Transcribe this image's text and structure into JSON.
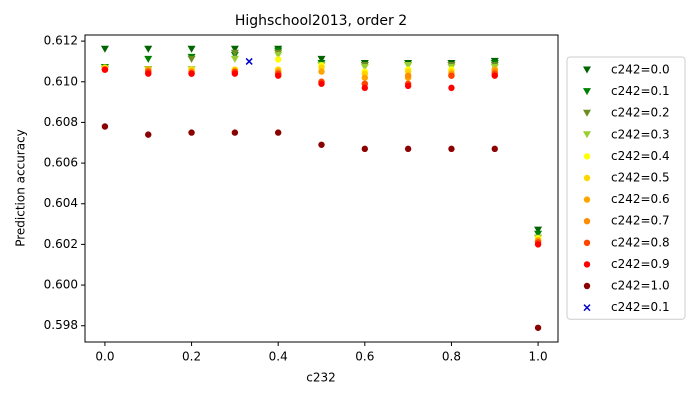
{
  "chart_data": {
    "type": "scatter",
    "title": "Highschool2013, order 2",
    "x_label": "c232",
    "y_label": "Prediction accuracy",
    "x": [
      0.0,
      0.1,
      0.2,
      0.3,
      0.4,
      0.5,
      0.6,
      0.7,
      0.8,
      0.9,
      1.0
    ],
    "xlim": [
      -0.046,
      1.046
    ],
    "ylim": [
      0.5972,
      0.6123
    ],
    "xticks": [
      {
        "value": 0,
        "label": "0.0"
      },
      0.2,
      0.4,
      0.6,
      0.8,
      {
        "value": 1,
        "label": "1.0"
      }
    ],
    "yticks": [
      0.598,
      {
        "value": 0.6,
        "label": "0.600"
      },
      0.602,
      0.604,
      0.606,
      0.608,
      {
        "value": 0.61,
        "label": "0.610"
      },
      0.612
    ],
    "grid": false,
    "legend": "outside-right",
    "series": [
      {
        "name": "c242=0.0",
        "color": "#006400",
        "marker": "v",
        "values": [
          0.6116,
          0.6116,
          0.6116,
          0.6116,
          0.6116,
          0.6111,
          0.6109,
          0.6109,
          0.6109,
          0.611,
          0.6027
        ]
      },
      {
        "name": "c242=0.1",
        "color": "#008000",
        "marker": "v",
        "values": [
          0.6107,
          0.6111,
          0.6112,
          0.6113,
          0.6115,
          0.6109,
          0.6108,
          0.6108,
          0.6108,
          0.6109,
          0.6025
        ]
      },
      {
        "name": "c242=0.2",
        "color": "#6b8e23",
        "marker": "v",
        "values": [
          0.6106,
          0.6106,
          0.6111,
          0.6114,
          0.6114,
          0.6108,
          0.6108,
          0.6108,
          0.6108,
          0.6108,
          0.6023
        ]
      },
      {
        "name": "c242=0.3",
        "color": "#9acd32",
        "marker": "v",
        "values": [
          0.6106,
          0.6106,
          0.6106,
          0.6111,
          0.6113,
          0.6108,
          0.6107,
          0.6108,
          0.6107,
          0.6107,
          0.6023
        ]
      },
      {
        "name": "c242=0.4",
        "color": "#ffff00",
        "marker": "o",
        "values": [
          0.6107,
          0.6106,
          0.6106,
          0.6106,
          0.6111,
          0.6108,
          0.6105,
          0.6106,
          0.6106,
          0.6106,
          0.6023
        ]
      },
      {
        "name": "c242=0.5",
        "color": "#ffd700",
        "marker": "o",
        "values": [
          0.6107,
          0.6106,
          0.6106,
          0.6106,
          0.6106,
          0.6107,
          0.6104,
          0.6105,
          0.6105,
          0.6106,
          0.6022
        ]
      },
      {
        "name": "c242=0.6",
        "color": "#ffa500",
        "marker": "o",
        "values": [
          0.6106,
          0.6106,
          0.6105,
          0.6105,
          0.6105,
          0.6105,
          0.6102,
          0.6102,
          0.6104,
          0.6106,
          0.6022
        ]
      },
      {
        "name": "c242=0.7",
        "color": "#ff8c00",
        "marker": "o",
        "values": [
          0.6106,
          0.6105,
          0.6105,
          0.6105,
          0.6104,
          0.61,
          0.6099,
          0.6103,
          0.6103,
          0.6105,
          0.6021
        ]
      },
      {
        "name": "c242=0.8",
        "color": "#ff4500",
        "marker": "o",
        "values": [
          0.6106,
          0.6105,
          0.6104,
          0.6105,
          0.6104,
          0.61,
          0.6099,
          0.6099,
          0.6103,
          0.6104,
          0.6021
        ]
      },
      {
        "name": "c242=0.9",
        "color": "#ff0000",
        "marker": "o",
        "values": [
          0.6106,
          0.6104,
          0.6104,
          0.6104,
          0.6103,
          0.6099,
          0.6097,
          0.6098,
          0.6097,
          0.6103,
          0.602
        ]
      },
      {
        "name": "c242=1.0",
        "color": "#8b0000",
        "marker": "o",
        "values": [
          0.6078,
          0.6074,
          0.6075,
          0.6075,
          0.6075,
          0.6069,
          0.6067,
          0.6067,
          0.6067,
          0.6067,
          0.5979
        ]
      },
      {
        "name": "c242=0.1",
        "color": "#0000cd",
        "marker": "x",
        "x": [
          0.333
        ],
        "values": [
          0.611
        ]
      }
    ]
  }
}
